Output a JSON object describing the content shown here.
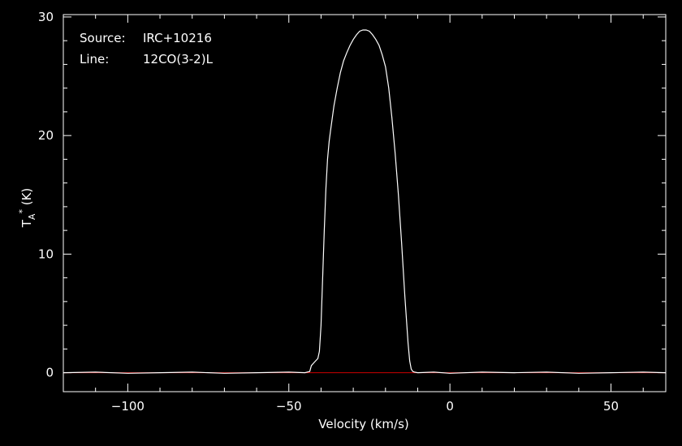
{
  "chart_data": {
    "type": "line",
    "source_label": "Source:",
    "source_value": "IRC+10216",
    "line_label": "Line:",
    "line_value": "12CO(3-2)L",
    "xlabel": "Velocity (km/s)",
    "ylabel_main": "T",
    "ylabel_sub": "A",
    "ylabel_sup": "*",
    "ylabel_unit": " (K)",
    "xlim": [
      -120,
      67
    ],
    "ylim": [
      -1.6,
      30.2
    ],
    "x_ticks": [
      -100,
      -50,
      0,
      50
    ],
    "x_tick_labels": [
      "−100",
      "−50",
      "0",
      "50"
    ],
    "y_ticks": [
      0,
      10,
      20,
      30
    ],
    "y_tick_labels": [
      "0",
      "10",
      "20",
      "30"
    ],
    "baseline_value": 0,
    "colors": {
      "background": "#000000",
      "axes": "#ffffff",
      "spectrum": "#ffffff",
      "baseline": "#cc0000"
    },
    "series": [
      {
        "x": [
          -120,
          -110,
          -100,
          -90,
          -80,
          -70,
          -60,
          -50,
          -45,
          -43.5,
          -43,
          -42,
          -41,
          -40.5,
          -40,
          -39.5,
          -39,
          -38.5,
          -38,
          -37.5,
          -37,
          -36,
          -35,
          -34,
          -33,
          -32,
          -31,
          -30,
          -29,
          -28,
          -27,
          -26,
          -25,
          -24,
          -23,
          -22,
          -21,
          -20,
          -19,
          -18,
          -17,
          -16,
          -15,
          -14,
          -13,
          -12.5,
          -12,
          -11.5,
          -11,
          -10,
          -5,
          0,
          10,
          20,
          30,
          40,
          50,
          60,
          67
        ],
        "y": [
          0.0,
          0.05,
          -0.05,
          0.0,
          0.05,
          -0.05,
          0.0,
          0.05,
          0.0,
          0.1,
          0.6,
          0.9,
          1.2,
          1.8,
          4.0,
          8.0,
          12.0,
          15.5,
          18.0,
          19.5,
          20.5,
          22.5,
          24.0,
          25.3,
          26.3,
          27.0,
          27.6,
          28.1,
          28.5,
          28.8,
          28.9,
          28.9,
          28.8,
          28.5,
          28.1,
          27.6,
          26.8,
          25.8,
          24.0,
          21.5,
          18.5,
          15.0,
          11.0,
          6.5,
          2.5,
          1.0,
          0.3,
          0.1,
          0.05,
          0.0,
          0.05,
          -0.05,
          0.05,
          0.0,
          0.05,
          -0.05,
          0.0,
          0.05,
          0.0
        ]
      }
    ]
  }
}
